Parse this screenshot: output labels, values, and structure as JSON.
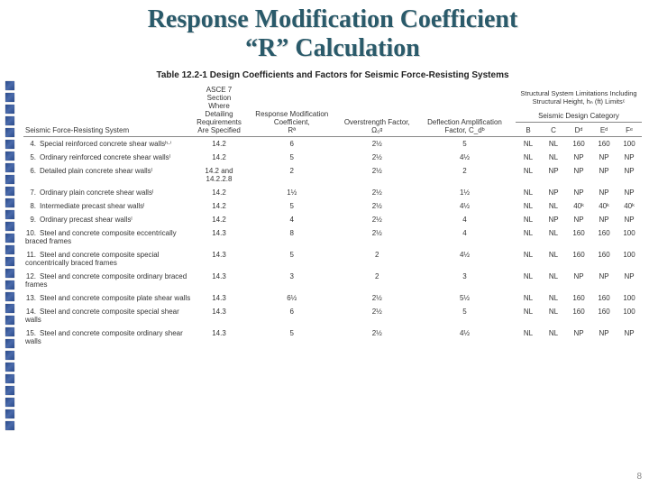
{
  "title_line1": "Response Modification Coefficient",
  "title_line2": "“R” Calculation",
  "table_caption": "Table 12.2-1  Design Coefficients and Factors for Seismic Force-Resisting Systems",
  "headers": {
    "sys": "Seismic Force-Resisting System",
    "asce": "ASCE 7 Section Where Detailing Requirements Are Specified",
    "R": "Response Modification Coefficient,",
    "R_sym": "Rª",
    "omega": "Overstrength Factor, Ω₀ᵍ",
    "cd": "Deflection Amplification Factor, C_dᵇ",
    "limits_top": "Structural System Limitations Including Structural Height, hₙ (ft) Limitsᶜ",
    "sdc": "Seismic Design Category",
    "B": "B",
    "C": "C",
    "D": "Dᵈ",
    "E": "Eᵈ",
    "F": "Fᵉ"
  },
  "rows": [
    {
      "n": "4.",
      "name": "Special reinforced concrete shear wallsʰ·ⁱ",
      "asce": "14.2",
      "R": "6",
      "O": "2½",
      "Cd": "5",
      "B": "NL",
      "C": "NL",
      "D": "160",
      "E": "160",
      "F": "100"
    },
    {
      "n": "5.",
      "name": "Ordinary reinforced concrete shear wallsˡ",
      "asce": "14.2",
      "R": "5",
      "O": "2½",
      "Cd": "4½",
      "B": "NL",
      "C": "NL",
      "D": "NP",
      "E": "NP",
      "F": "NP"
    },
    {
      "n": "6.",
      "name": "Detailed plain concrete shear wallsˡ",
      "asce": "14.2 and 14.2.2.8",
      "R": "2",
      "O": "2½",
      "Cd": "2",
      "B": "NL",
      "C": "NP",
      "D": "NP",
      "E": "NP",
      "F": "NP"
    },
    {
      "n": "7.",
      "name": "Ordinary plain concrete shear wallsˡ",
      "asce": "14.2",
      "R": "1½",
      "O": "2½",
      "Cd": "1½",
      "B": "NL",
      "C": "NP",
      "D": "NP",
      "E": "NP",
      "F": "NP"
    },
    {
      "n": "8.",
      "name": "Intermediate precast shear wallsˡ",
      "asce": "14.2",
      "R": "5",
      "O": "2½",
      "Cd": "4½",
      "B": "NL",
      "C": "NL",
      "D": "40ᵏ",
      "E": "40ᵏ",
      "F": "40ᵏ"
    },
    {
      "n": "9.",
      "name": "Ordinary precast shear wallsˡ",
      "asce": "14.2",
      "R": "4",
      "O": "2½",
      "Cd": "4",
      "B": "NL",
      "C": "NP",
      "D": "NP",
      "E": "NP",
      "F": "NP"
    },
    {
      "n": "10.",
      "name": "Steel and concrete composite eccentrically braced frames",
      "asce": "14.3",
      "R": "8",
      "O": "2½",
      "Cd": "4",
      "B": "NL",
      "C": "NL",
      "D": "160",
      "E": "160",
      "F": "100"
    },
    {
      "n": "11.",
      "name": "Steel and concrete composite special concentrically braced frames",
      "asce": "14.3",
      "R": "5",
      "O": "2",
      "Cd": "4½",
      "B": "NL",
      "C": "NL",
      "D": "160",
      "E": "160",
      "F": "100"
    },
    {
      "n": "12.",
      "name": "Steel and concrete composite ordinary braced frames",
      "asce": "14.3",
      "R": "3",
      "O": "2",
      "Cd": "3",
      "B": "NL",
      "C": "NL",
      "D": "NP",
      "E": "NP",
      "F": "NP"
    },
    {
      "n": "13.",
      "name": "Steel and concrete composite plate shear walls",
      "asce": "14.3",
      "R": "6½",
      "O": "2½",
      "Cd": "5½",
      "B": "NL",
      "C": "NL",
      "D": "160",
      "E": "160",
      "F": "100"
    },
    {
      "n": "14.",
      "name": "Steel and concrete composite special shear walls",
      "asce": "14.3",
      "R": "6",
      "O": "2½",
      "Cd": "5",
      "B": "NL",
      "C": "NL",
      "D": "160",
      "E": "160",
      "F": "100"
    },
    {
      "n": "15.",
      "name": "Steel and concrete composite ordinary shear walls",
      "asce": "14.3",
      "R": "5",
      "O": "2½",
      "Cd": "4½",
      "B": "NL",
      "C": "NL",
      "D": "NP",
      "E": "NP",
      "F": "NP"
    }
  ],
  "page_number": "8",
  "colors": {
    "title": "#2a5a6a",
    "square": "#3a5a9a",
    "text": "#333333",
    "rule": "#888888",
    "bg": "#ffffff"
  },
  "fontsizes": {
    "title": 28,
    "table_caption": 10,
    "table_body": 8,
    "page_num": 10
  }
}
